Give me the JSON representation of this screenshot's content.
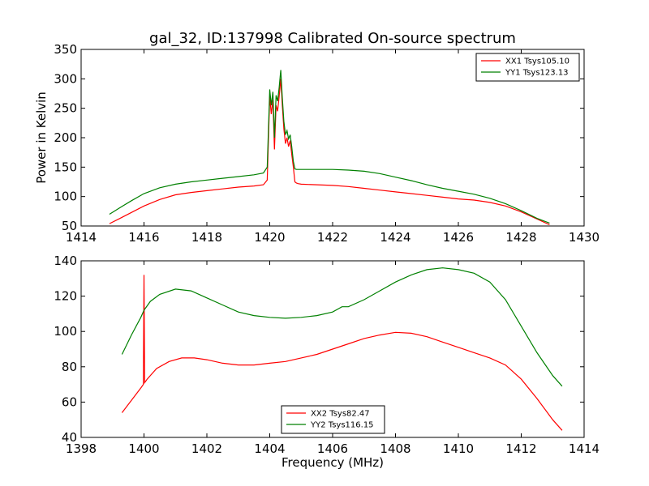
{
  "title": "gal_32, ID:137998 Calibrated On-source spectrum",
  "chart_data": [
    {
      "type": "line",
      "ylabel": "Power in Kelvin",
      "xlabel": "",
      "xlim": [
        1414,
        1430
      ],
      "ylim": [
        50,
        350
      ],
      "xticks": [
        "1414",
        "1416",
        "1418",
        "1420",
        "1422",
        "1424",
        "1426",
        "1428",
        "1430"
      ],
      "yticks": [
        "50",
        "100",
        "150",
        "200",
        "250",
        "300",
        "350"
      ],
      "legend_position": "top-right",
      "grid": false,
      "series": [
        {
          "name": "XX1 Tsys105.10",
          "color": "#ff0000",
          "x": [
            1414.9,
            1415.2,
            1415.6,
            1416.0,
            1416.5,
            1417.0,
            1417.5,
            1418.0,
            1418.5,
            1419.0,
            1419.5,
            1419.8,
            1419.92,
            1420.0,
            1420.05,
            1420.1,
            1420.15,
            1420.2,
            1420.25,
            1420.3,
            1420.35,
            1420.4,
            1420.45,
            1420.5,
            1420.55,
            1420.6,
            1420.65,
            1420.7,
            1420.75,
            1420.8,
            1420.85,
            1420.9,
            1421.0,
            1421.5,
            1422.0,
            1422.5,
            1423.0,
            1423.5,
            1424.0,
            1424.5,
            1425.0,
            1425.5,
            1426.0,
            1426.5,
            1427.0,
            1427.5,
            1428.0,
            1428.5,
            1428.9
          ],
          "y": [
            54,
            62,
            73,
            84,
            95,
            103,
            107,
            110,
            113,
            116,
            118,
            120,
            128,
            270,
            240,
            265,
            180,
            255,
            245,
            270,
            300,
            255,
            215,
            190,
            200,
            185,
            195,
            172,
            150,
            125,
            123,
            122,
            121,
            120,
            119,
            117,
            114,
            111,
            108,
            105,
            102,
            99,
            96,
            94,
            90,
            84,
            74,
            62,
            52
          ]
        },
        {
          "name": "YY1 Tsys123.13",
          "color": "#008000",
          "x": [
            1414.9,
            1415.2,
            1415.6,
            1416.0,
            1416.5,
            1417.0,
            1417.5,
            1418.0,
            1418.5,
            1419.0,
            1419.5,
            1419.8,
            1419.92,
            1420.0,
            1420.05,
            1420.1,
            1420.15,
            1420.2,
            1420.25,
            1420.3,
            1420.35,
            1420.4,
            1420.45,
            1420.5,
            1420.55,
            1420.6,
            1420.65,
            1420.7,
            1420.75,
            1420.8,
            1420.85,
            1420.9,
            1421.0,
            1421.5,
            1422.0,
            1422.5,
            1423.0,
            1423.5,
            1424.0,
            1424.5,
            1425.0,
            1425.5,
            1426.0,
            1426.5,
            1427.0,
            1427.5,
            1428.0,
            1428.5,
            1428.9
          ],
          "y": [
            70,
            80,
            93,
            105,
            115,
            121,
            125,
            128,
            131,
            134,
            137,
            140,
            150,
            282,
            255,
            278,
            200,
            272,
            262,
            285,
            315,
            268,
            228,
            205,
            212,
            198,
            205,
            185,
            160,
            147,
            146,
            146,
            146,
            146,
            146,
            145,
            143,
            139,
            133,
            127,
            120,
            114,
            109,
            104,
            97,
            88,
            76,
            63,
            55
          ]
        }
      ]
    },
    {
      "type": "line",
      "ylabel": "",
      "xlabel": "Frequency (MHz)",
      "xlim": [
        1398,
        1414
      ],
      "ylim": [
        40,
        140
      ],
      "xticks": [
        "1398",
        "1400",
        "1402",
        "1404",
        "1406",
        "1408",
        "1410",
        "1412",
        "1414"
      ],
      "yticks": [
        "40",
        "60",
        "80",
        "100",
        "120",
        "140"
      ],
      "legend_position": "bottom-center",
      "grid": false,
      "series": [
        {
          "name": "XX2 Tsys82.47",
          "color": "#ff0000",
          "x": [
            1399.3,
            1399.6,
            1399.9,
            1399.98,
            1400.0,
            1400.02,
            1400.1,
            1400.4,
            1400.8,
            1401.2,
            1401.6,
            1402.0,
            1402.5,
            1403.0,
            1403.5,
            1404.0,
            1404.5,
            1405.0,
            1405.5,
            1406.0,
            1406.5,
            1407.0,
            1407.5,
            1408.0,
            1408.5,
            1409.0,
            1409.5,
            1410.0,
            1410.5,
            1411.0,
            1411.5,
            1412.0,
            1412.5,
            1413.0,
            1413.3
          ],
          "y": [
            54,
            61,
            68,
            70,
            132,
            71,
            73,
            79,
            83,
            85,
            85,
            84,
            82,
            81,
            81,
            82,
            83,
            85,
            87,
            90,
            93,
            96,
            98,
            99.5,
            99,
            97,
            94,
            91,
            88,
            85,
            81,
            73,
            62,
            50,
            44
          ]
        },
        {
          "name": "YY2 Tsys116.15",
          "color": "#008000",
          "x": [
            1399.3,
            1399.6,
            1399.9,
            1400.0,
            1400.2,
            1400.5,
            1401.0,
            1401.5,
            1402.0,
            1402.5,
            1403.0,
            1403.5,
            1404.0,
            1404.5,
            1405.0,
            1405.5,
            1406.0,
            1406.3,
            1406.5,
            1407.0,
            1407.5,
            1408.0,
            1408.5,
            1409.0,
            1409.5,
            1410.0,
            1410.5,
            1411.0,
            1411.5,
            1412.0,
            1412.5,
            1413.0,
            1413.3
          ],
          "y": [
            87,
            98,
            108,
            112,
            117,
            121,
            124,
            123,
            119,
            115,
            111,
            109,
            108,
            107.5,
            108,
            109,
            111,
            114,
            114,
            118,
            123,
            128,
            132,
            135,
            136,
            135,
            133,
            128,
            118,
            103,
            88,
            75,
            69
          ]
        }
      ]
    }
  ]
}
